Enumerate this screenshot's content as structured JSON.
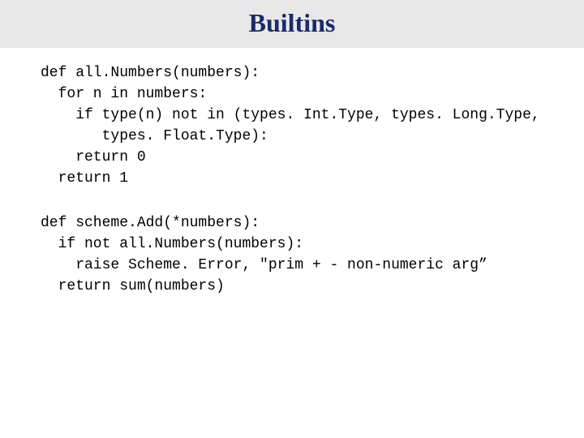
{
  "title": "Builtins",
  "code1": "def all.Numbers(numbers):\n  for n in numbers:\n    if type(n) not in (types. Int.Type, types. Long.Type,\n       types. Float.Type):\n    return 0\n  return 1",
  "code2": "def scheme.Add(*numbers):\n  if not all.Numbers(numbers):\n    raise Scheme. Error, \"prim + - non-numeric arg”\n  return sum(numbers)",
  "colors": {
    "title_bg": "#e8e8e8",
    "title_text": "#1a2a6c",
    "body_bg": "#ffffff",
    "code_text": "#000000"
  },
  "typography": {
    "title_font": "Georgia serif",
    "title_size_pt": 24,
    "title_weight": "bold",
    "code_font": "Courier New monospace",
    "code_size_pt": 14
  },
  "layout": {
    "slide_width": 720,
    "slide_height": 540,
    "code_left_pad": 50
  }
}
